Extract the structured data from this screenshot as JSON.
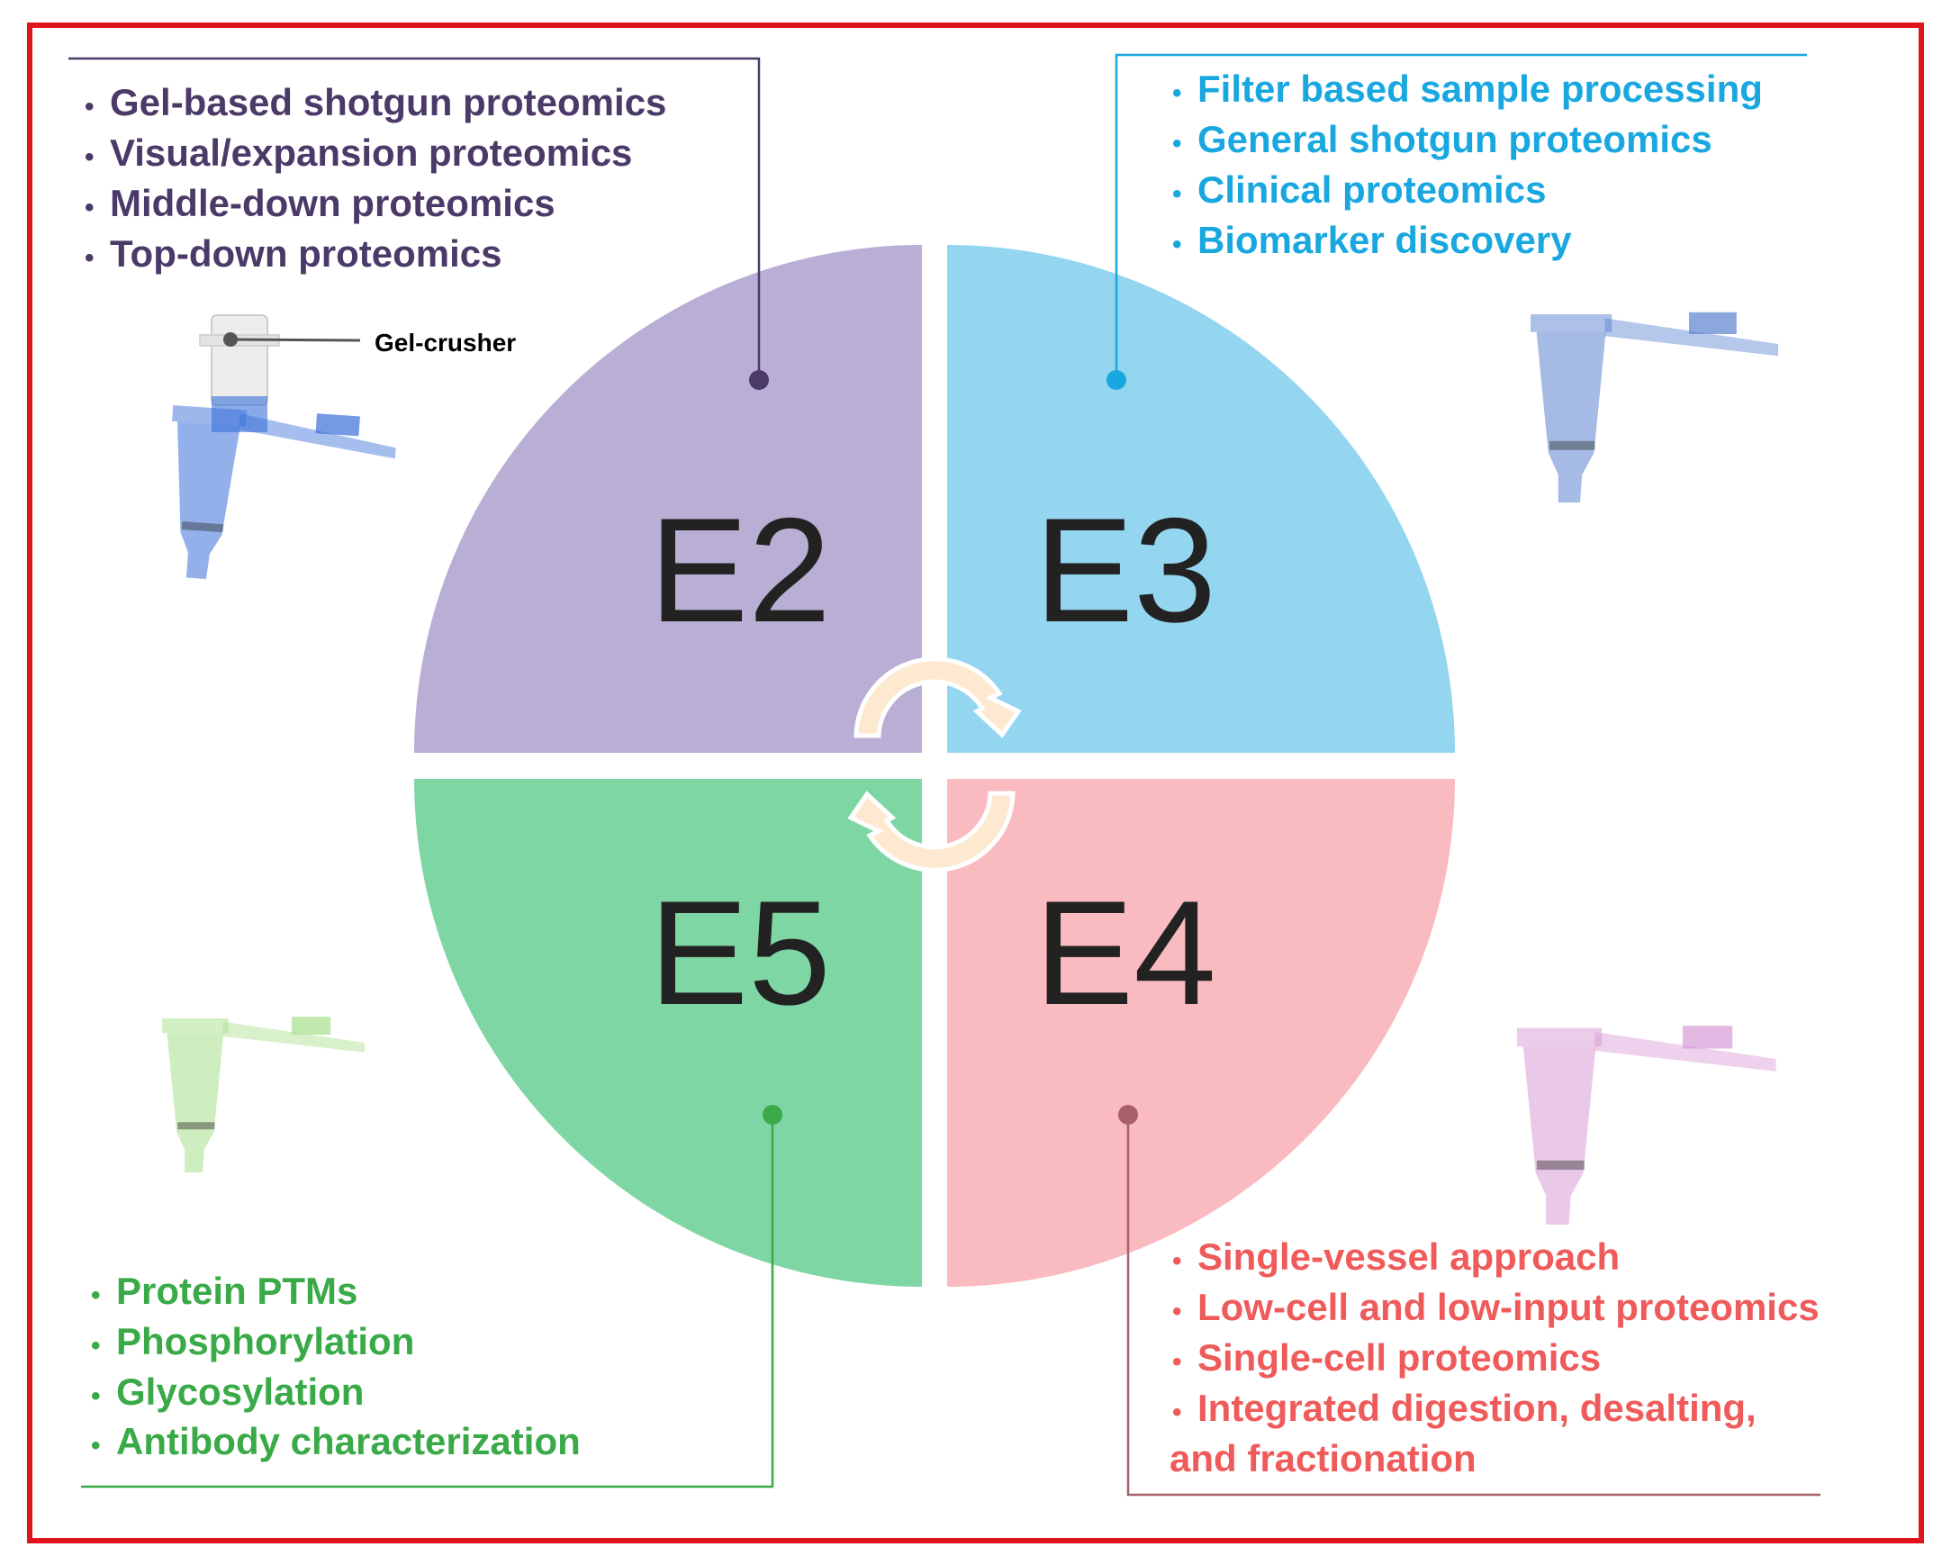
{
  "colors": {
    "frame": "#e0141e",
    "e2_fill": "#b9aed4",
    "e2_text": "#4b3a68",
    "e3_fill": "#94d5f0",
    "e3_text": "#19a7e0",
    "e4_fill": "#f9bbc0",
    "e4_text": "#ef5a5a",
    "e4_line": "#a8606a",
    "e5_fill": "#7fd6a5",
    "e5_text": "#3aaa48",
    "arrow": "#fde9d0"
  },
  "bullet": "•",
  "e2": {
    "label": "E2",
    "items": [
      "Gel-based shotgun proteomics",
      "Visual/expansion proteomics",
      "Middle-down proteomics",
      "Top-down proteomics"
    ],
    "callout": "Gel-crusher"
  },
  "e3": {
    "label": "E3",
    "items": [
      "Filter based sample processing",
      "General shotgun proteomics",
      "Clinical proteomics",
      "Biomarker discovery"
    ]
  },
  "e4": {
    "label": "E4",
    "items": [
      "Single-vessel approach",
      "Low-cell and low-input proteomics",
      "Single-cell proteomics",
      "Integrated digestion, desalting,"
    ],
    "continuation": "and fractionation"
  },
  "e5": {
    "label": "E5",
    "items": [
      "Protein PTMs",
      "Phosphorylation",
      "Glycosylation",
      "Antibody characterization"
    ]
  },
  "icons": [
    "gel-crusher-tube",
    "filter-tube",
    "cycle-arrow"
  ]
}
